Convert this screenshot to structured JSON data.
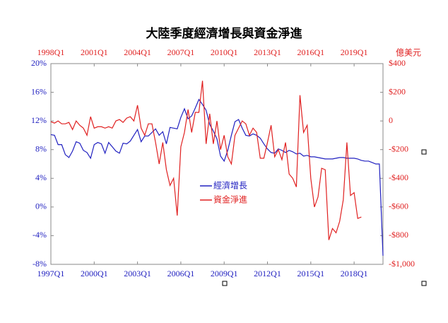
{
  "chart_data": {
    "type": "line",
    "title": "大陸季度經濟增長與資金淨進",
    "y2_label": "億美元",
    "legend": "center",
    "xlim": [
      1997,
      2020
    ],
    "xticks": [
      {
        "value": 1997,
        "label": "1997Q1"
      },
      {
        "value": 2000,
        "label": "2000Q1"
      },
      {
        "value": 2003,
        "label": "2003Q1"
      },
      {
        "value": 2006,
        "label": "2006Q1"
      },
      {
        "value": 2009,
        "label": "2009Q1"
      },
      {
        "value": 2012,
        "label": "2012Q1"
      },
      {
        "value": 2015,
        "label": "2015Q1"
      },
      {
        "value": 2018,
        "label": "2018Q1"
      }
    ],
    "x2lim": [
      1998,
      2021
    ],
    "x2ticks": [
      {
        "value": 1998,
        "label": "1998Q1"
      },
      {
        "value": 2001,
        "label": "2001Q1"
      },
      {
        "value": 2004,
        "label": "2004Q1"
      },
      {
        "value": 2007,
        "label": "2007Q1"
      },
      {
        "value": 2010,
        "label": "2010Q1"
      },
      {
        "value": 2013,
        "label": "2013Q1"
      },
      {
        "value": 2016,
        "label": "2016Q1"
      },
      {
        "value": 2019,
        "label": "2019Q1"
      }
    ],
    "ylim": [
      -8,
      20
    ],
    "yticks": [
      {
        "value": 20,
        "label": "20%"
      },
      {
        "value": 16,
        "label": "16%"
      },
      {
        "value": 12,
        "label": "12%"
      },
      {
        "value": 8,
        "label": "8%"
      },
      {
        "value": 4,
        "label": "4%"
      },
      {
        "value": 0,
        "label": "0%"
      },
      {
        "value": -4,
        "label": "-4%"
      },
      {
        "value": -8,
        "label": "-8%"
      }
    ],
    "y2lim": [
      -1000,
      400
    ],
    "y2ticks": [
      {
        "value": 400,
        "label": "$400"
      },
      {
        "value": 200,
        "label": "$200"
      },
      0,
      {
        "value": -200,
        "label": "-$200"
      },
      {
        "value": -400,
        "label": "-$400"
      },
      {
        "value": -600,
        "label": "-$600"
      },
      {
        "value": -800,
        "label": "-$800"
      },
      {
        "value": -1000,
        "label": "-$1,000"
      }
    ],
    "series": [
      {
        "name": "經濟增長",
        "color": "#2020c0",
        "axis": "y",
        "x": [
          1997,
          1997.25,
          1997.5,
          1997.75,
          1998,
          1998.25,
          1998.5,
          1998.75,
          1999,
          1999.25,
          1999.5,
          1999.75,
          2000,
          2000.25,
          2000.5,
          2000.75,
          2001,
          2001.25,
          2001.5,
          2001.75,
          2002,
          2002.25,
          2002.5,
          2002.75,
          2003,
          2003.25,
          2003.5,
          2003.75,
          2004,
          2004.25,
          2004.5,
          2004.75,
          2005,
          2005.25,
          2005.5,
          2005.75,
          2006,
          2006.25,
          2006.5,
          2006.75,
          2007,
          2007.25,
          2007.5,
          2007.75,
          2008,
          2008.25,
          2008.5,
          2008.75,
          2009,
          2009.25,
          2009.5,
          2009.75,
          2010,
          2010.25,
          2010.5,
          2010.75,
          2011,
          2011.25,
          2011.5,
          2011.75,
          2012,
          2012.25,
          2012.5,
          2012.75,
          2013,
          2013.25,
          2013.5,
          2013.75,
          2014,
          2014.25,
          2014.5,
          2014.75,
          2015,
          2015.25,
          2015.5,
          2015.75,
          2016,
          2016.25,
          2016.5,
          2016.75,
          2017,
          2017.25,
          2017.5,
          2017.75,
          2018,
          2018.25,
          2018.5,
          2018.75,
          2019,
          2019.25,
          2019.5,
          2019.75,
          2020
        ],
        "values": [
          10.1,
          10.0,
          8.7,
          8.7,
          7.3,
          6.9,
          7.8,
          9.1,
          8.9,
          7.9,
          7.6,
          6.8,
          8.7,
          9.0,
          8.8,
          7.5,
          9.0,
          8.4,
          7.8,
          7.5,
          8.9,
          8.8,
          9.2,
          10.0,
          10.8,
          9.1,
          9.9,
          9.9,
          10.4,
          10.9,
          10.0,
          10.5,
          8.8,
          11.1,
          11.0,
          10.9,
          12.5,
          13.7,
          12.3,
          12.7,
          13.8,
          15.0,
          14.3,
          13.5,
          11.5,
          10.6,
          9.5,
          7.1,
          6.4,
          7.9,
          10.0,
          11.9,
          12.2,
          11.0,
          10.0,
          9.9,
          10.2,
          10.0,
          9.6,
          8.8,
          8.1,
          7.6,
          7.5,
          8.1,
          7.9,
          7.6,
          7.9,
          7.7,
          7.4,
          7.5,
          7.1,
          7.2,
          7.0,
          7.0,
          6.9,
          6.8,
          6.7,
          6.7,
          6.7,
          6.8,
          6.9,
          6.9,
          6.8,
          6.8,
          6.8,
          6.7,
          6.5,
          6.4,
          6.4,
          6.2,
          6.0,
          6.0,
          -6.8
        ]
      },
      {
        "name": "資金淨進",
        "color": "#e02020",
        "axis": "y2",
        "x": [
          1998,
          1998.25,
          1998.5,
          1998.75,
          1999,
          1999.25,
          1999.5,
          1999.75,
          2000,
          2000.25,
          2000.5,
          2000.75,
          2001,
          2001.25,
          2001.5,
          2001.75,
          2002,
          2002.25,
          2002.5,
          2002.75,
          2003,
          2003.25,
          2003.5,
          2003.75,
          2004,
          2004.25,
          2004.5,
          2004.75,
          2005,
          2005.25,
          2005.5,
          2005.75,
          2006,
          2006.25,
          2006.5,
          2006.75,
          2007,
          2007.25,
          2007.5,
          2007.75,
          2008,
          2008.25,
          2008.5,
          2008.75,
          2009,
          2009.25,
          2009.5,
          2009.75,
          2010,
          2010.25,
          2010.5,
          2010.75,
          2011,
          2011.25,
          2011.5,
          2011.75,
          2012,
          2012.25,
          2012.5,
          2012.75,
          2013,
          2013.25,
          2013.5,
          2013.75,
          2014,
          2014.25,
          2014.5,
          2014.75,
          2015,
          2015.25,
          2015.5,
          2015.75,
          2016,
          2016.25,
          2016.5,
          2016.75,
          2017,
          2017.25,
          2017.5,
          2017.75,
          2018,
          2018.25,
          2018.5,
          2018.75,
          2019,
          2019.25,
          2019.5
        ],
        "values": [
          -5,
          -15,
          0,
          -20,
          -20,
          -10,
          -60,
          0,
          -30,
          -50,
          -100,
          30,
          -50,
          -40,
          -40,
          -50,
          -40,
          -50,
          0,
          10,
          -10,
          20,
          30,
          0,
          110,
          -50,
          -100,
          -20,
          -20,
          -150,
          -300,
          -150,
          -340,
          -450,
          -400,
          -660,
          -180,
          -80,
          80,
          -80,
          60,
          60,
          280,
          -160,
          50,
          -160,
          0,
          -200,
          -100,
          -250,
          -300,
          -100,
          -50,
          0,
          -20,
          -100,
          -50,
          -80,
          -260,
          -260,
          -150,
          -30,
          -250,
          -200,
          -270,
          -150,
          -370,
          -400,
          -460,
          180,
          -80,
          -30,
          -400,
          -600,
          -530,
          -330,
          -340,
          -830,
          -750,
          -780,
          -700,
          -550,
          -150,
          -520,
          -500,
          -680,
          -670
        ]
      }
    ]
  }
}
